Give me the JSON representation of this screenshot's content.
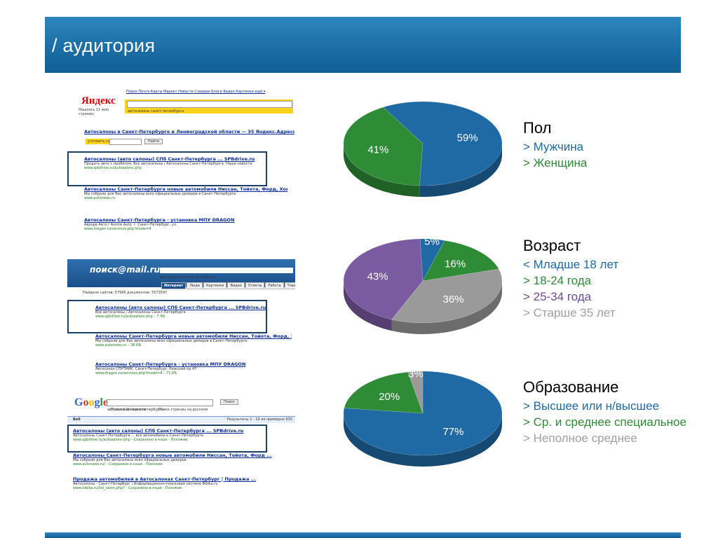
{
  "header": {
    "title": "/ аудитория"
  },
  "screenshot_panel": {
    "yandex": {
      "logo": "Яндекс",
      "nav": "Поиск  Почта  Карты  Маркет  Новости  Словари  Блоги  Видео  Картинки  ещё ▾",
      "query": "автосалоны санкт-петербурга",
      "found": "Нашлось 11 млн страниц",
      "refine_label": "уточнить где",
      "find_button": "Найти",
      "results": [
        {
          "title": "Автосалоны в Санкт-Петербурге и Ленинградской области — 35 Яндекс.Адресов",
          "snippet": "",
          "url": ""
        },
        {
          "title": "Автосалоны (авто салоны) СПб Санкт-Петербурга ... SPBdrive.ru",
          "snippet": "Продать авто с пробегом. Все автосалоны / Автосалоны Санкт-Петербурга: Наши новости",
          "url": "www.spbdrive.ru/autosalons.php"
        },
        {
          "title": "Автосалоны Санкт-Петербурга новые автомобили Ниссан, Тойота, Форд, Хонда ...",
          "snippet": "Мы собрали для Вас автосалоны всех официальных дилеров в Санкт-Петербурге.",
          "url": "www.autonews.ru"
        },
        {
          "title": "Автосалоны Санкт-Петербурга - установка МПУ DRAGON",
          "snippet": "Аврора Авто / Aurore Auto. г. Санкт-Петербург, ул.",
          "url": "www.dragon.ru/services.php?mode=4"
        }
      ]
    },
    "mail": {
      "logo": "поиск@mail.ru",
      "query": "автосалоны санкт-петербурга",
      "tabs": [
        "Интернет",
        "Люди",
        "Картинки",
        "Видео",
        "Ответы",
        "Работа",
        "Това"
      ],
      "found": "Найдено сайтов: 57995 документов: 5573597",
      "results": [
        {
          "title": "Автосалоны (авто салоны) СПб Санкт-Петербурга ... SPBdrive.ru",
          "snippet": "Все автосалоны / Автосалоны Санкт-Петербурга",
          "url": "www.spbdrive.ru/autosalons.php – 7 КБ"
        },
        {
          "title": "Автосалоны Санкт-Петербурга новые автомобили Ниссан, Тойота, Форд, Хонда ...",
          "snippet": "Мы собрали для Вас автосалоны всех официальных дилеров в Санкт-Петербурге.",
          "url": "www.autonews.ru – 38 КБ"
        },
        {
          "title": "Автосалоны Санкт-Петербурга - установка МПУ DRAGON",
          "snippet": "Автосалон СПУТНИК. Санкт-Петербург, Рижский пр 47",
          "url": "www.dragon.ru/services.php?mode=4 – 71 КБ"
        }
      ]
    },
    "google": {
      "letters": [
        "G",
        "o",
        "o",
        "g",
        "l",
        "e"
      ],
      "query": "автосалоны санкт-петербурга",
      "search_button": "Поиск",
      "radio_1": "Поиск в Интернете",
      "radio_2": "Поиск страниц на русском",
      "strip_left": "Веб",
      "strip_right": "Результаты 1 - 10 из примерно 630",
      "results": [
        {
          "title": "Автосалоны (авто салоны) СПб Санкт-Петербурга ... SPBdrive.ru",
          "snippet": "Автосалоны Санкт-Петербурга ... все автомобили в Санкт-Петербурге",
          "url": "www.spbdrive.ru/autosalons.php - Сохранено в кэше - Похожие"
        },
        {
          "title": "Автосалоны Санкт-Петербурга новые автомобили Ниссан, Тойота, Форд ...",
          "snippet": "Мы собрали для Вас автосалоны всех официальных дилеров",
          "url": "www.autonews.ru/ - Сохранено в кэше - Похожие"
        },
        {
          "title": "Продажа автомобилей в Автосалонах Санкт-Петербург | Продажа ...",
          "snippet": "Автосалоны - Санкт-Петербург | Информационно-поисковая система Bibika.ru",
          "url": "www.bibika.ru/list_salon.php? - Сохранено в кэше - Похожие"
        }
      ]
    }
  },
  "chart_data": [
    {
      "type": "pie",
      "title": "Пол",
      "legend_placement": "right",
      "slices": [
        {
          "name": "> Мужчина",
          "value": 59,
          "label": "59%",
          "color": "#1f6aa5"
        },
        {
          "name": "> Женщина",
          "value": 41,
          "label": "41%",
          "color": "#2e8b36"
        }
      ]
    },
    {
      "type": "pie",
      "title": "Возраст",
      "legend_placement": "right",
      "slices": [
        {
          "name": "< Младше 18 лет",
          "value": 5,
          "label": "5%",
          "color": "#1f6aa5"
        },
        {
          "name": "> 18-24 года",
          "value": 16,
          "label": "16%",
          "color": "#2e8b36"
        },
        {
          "name": "> 25-34 года",
          "value": 36,
          "label": "36%",
          "color": "#9a9a9a"
        },
        {
          "name": "> Старше 35 лет",
          "value": 43,
          "label": "43%",
          "color": "#7a5aa0"
        }
      ],
      "legend_colors": [
        "#1f6aa5",
        "#2e8b36",
        "#6a4a9a",
        "#a0a0a0"
      ]
    },
    {
      "type": "pie",
      "title": "Образование",
      "legend_placement": "right",
      "slices": [
        {
          "name": "> Высшее или н/высшее",
          "value": 77,
          "label": "77%",
          "color": "#1f6aa5"
        },
        {
          "name": "> Ср. и среднее специальное",
          "value": 20,
          "label": "20%",
          "color": "#2e8b36"
        },
        {
          "name": "> Неполное среднее",
          "value": 3,
          "label": "3%",
          "color": "#9a9a9a"
        }
      ],
      "legend_colors": [
        "#1f6aa5",
        "#2e8b36",
        "#a0a0a0"
      ]
    }
  ]
}
